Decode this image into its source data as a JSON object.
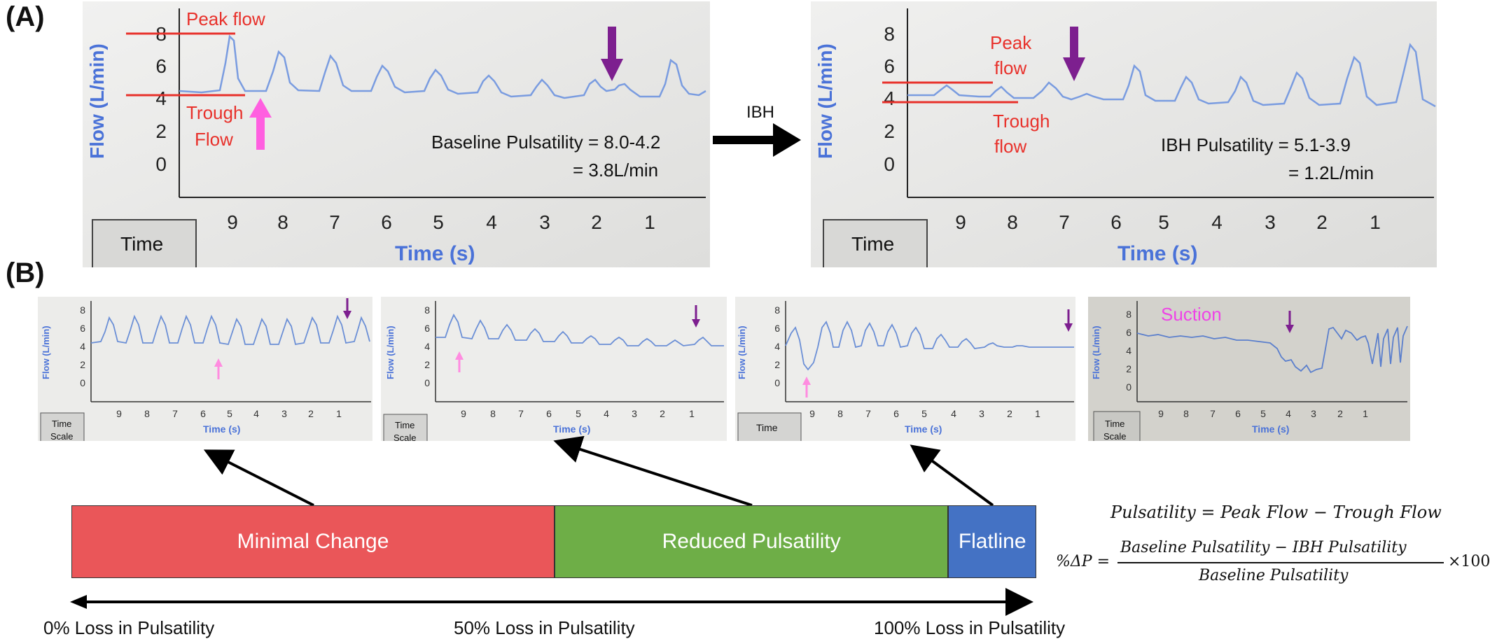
{
  "panel_labels": {
    "a": "(A)",
    "b": "(B)"
  },
  "panel_a": {
    "baseline": {
      "y_axis_label": "Flow (L/min)",
      "y_ticks": [
        "8",
        "6",
        "4",
        "2",
        "0"
      ],
      "x_ticks": [
        "9",
        "8",
        "7",
        "6",
        "5",
        "4",
        "3",
        "2",
        "1"
      ],
      "x_axis_label": "Time (s)",
      "time_scale_button": "Time",
      "peak_label": "Peak flow",
      "trough_label": [
        "Trough",
        "Flow"
      ],
      "result_line1": "Baseline Pulsatility = 8.0-4.2",
      "result_line2": "= 3.8L/min"
    },
    "transition_label": "IBH",
    "ibh": {
      "y_axis_label": "Flow (L/min)",
      "y_ticks": [
        "8",
        "6",
        "4",
        "2",
        "0"
      ],
      "x_ticks": [
        "9",
        "8",
        "7",
        "6",
        "5",
        "4",
        "3",
        "2",
        "1"
      ],
      "x_axis_label": "Time (s)",
      "time_scale_button": "Time",
      "peak_label": [
        "Peak",
        "flow"
      ],
      "trough_label": [
        "Trough",
        "flow"
      ],
      "result_line1": "IBH Pulsatility = 5.1-3.9",
      "result_line2": "= 1.2L/min"
    }
  },
  "panel_b": {
    "thumbnails": [
      {
        "y_axis_label": "Flow (L/min)",
        "y_ticks": [
          "8",
          "6",
          "4",
          "2",
          "0"
        ],
        "x_ticks": [
          "9",
          "8",
          "7",
          "6",
          "5",
          "4",
          "3",
          "2",
          "1"
        ],
        "x_axis_label": "Time (s)",
        "button": [
          "Time",
          "Scale"
        ],
        "note": ""
      },
      {
        "y_axis_label": "Flow (L/min)",
        "y_ticks": [
          "8",
          "6",
          "4",
          "2",
          "0"
        ],
        "x_ticks": [
          "9",
          "8",
          "7",
          "6",
          "5",
          "4",
          "3",
          "2",
          "1"
        ],
        "x_axis_label": "Time (s)",
        "button": [
          "Time",
          "Scale"
        ],
        "note": ""
      },
      {
        "y_axis_label": "Flow (L/min)",
        "y_ticks": [
          "8",
          "6",
          "4",
          "2",
          "0"
        ],
        "x_ticks": [
          "9",
          "8",
          "7",
          "6",
          "5",
          "4",
          "3",
          "2",
          "1"
        ],
        "x_axis_label": "Time (s)",
        "button": [
          "Time",
          ""
        ],
        "note": ""
      },
      {
        "y_axis_label": "Flow (L/min)",
        "y_ticks": [
          "8",
          "6",
          "4",
          "2",
          "0"
        ],
        "x_ticks": [
          "9",
          "8",
          "7",
          "6",
          "5",
          "4",
          "3",
          "2",
          "1"
        ],
        "x_axis_label": "Time (s)",
        "button": [
          "Time",
          "Scale"
        ],
        "note": "Suction"
      }
    ],
    "scale": {
      "segments": [
        {
          "label": "Minimal Change",
          "color": "#ea5659"
        },
        {
          "label": "Reduced Pulsatility",
          "color": "#6eae47"
        },
        {
          "label": "Flatline",
          "color": "#4472c4"
        }
      ],
      "ticks": [
        "0% Loss in Pulsatility",
        "50% Loss in Pulsatility",
        "100% Loss in Pulsatility"
      ]
    },
    "formulas": {
      "definition": "Pulsatility = Peak Flow  − Trough Flow",
      "percent_label": "%ΔP =",
      "numerator": "Baseline Pulsatility  − IBH Pulsatility",
      "denominator": "Baseline Pulsatility",
      "multiplier": "×100"
    }
  },
  "colors": {
    "annotation_red": "#e8312b",
    "peak_arrow": "#ff5fe0",
    "trough_arrow": "#7d1f8f",
    "trace_blue": "#6b8fd6",
    "axis_blue": "#3a64d0"
  }
}
